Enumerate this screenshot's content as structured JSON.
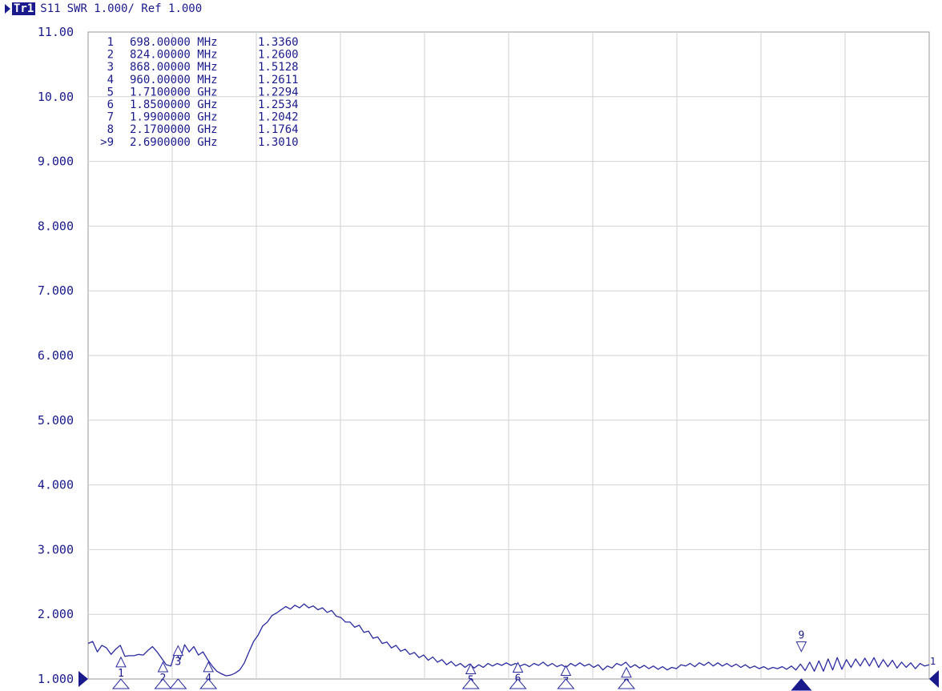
{
  "header": {
    "trace_label": "Tr1",
    "measurement": "S11",
    "format": "SWR 1.000/ Ref 1.000"
  },
  "colors": {
    "trace": "#2a2aa0",
    "grid": "#d2d2d2",
    "text": "#1a1a8c",
    "marker_fill": "#1a1a8c"
  },
  "chart_data": {
    "type": "line",
    "ylim": [
      1.0,
      11.0
    ],
    "y_ticks": [
      "1.000",
      "2.000",
      "3.000",
      "4.000",
      "5.000",
      "6.000",
      "7.000",
      "8.000",
      "9.000",
      "10.00",
      "11.00"
    ],
    "x_divisions": 10,
    "grid": true,
    "series": [
      {
        "values": [
          1.55,
          1.58,
          1.42,
          1.52,
          1.48,
          1.38,
          1.46,
          1.52,
          1.35,
          1.36,
          1.36,
          1.38,
          1.37,
          1.44,
          1.5,
          1.42,
          1.32,
          1.22,
          1.2,
          1.42,
          1.3,
          1.53,
          1.42,
          1.5,
          1.37,
          1.42,
          1.3,
          1.2,
          1.12,
          1.08,
          1.05,
          1.06,
          1.09,
          1.14,
          1.25,
          1.42,
          1.58,
          1.68,
          1.82,
          1.88,
          1.98,
          2.02,
          2.07,
          2.12,
          2.08,
          2.14,
          2.1,
          2.16,
          2.1,
          2.13,
          2.07,
          2.1,
          2.03,
          2.06,
          1.97,
          1.95,
          1.88,
          1.88,
          1.8,
          1.83,
          1.72,
          1.74,
          1.63,
          1.65,
          1.55,
          1.57,
          1.48,
          1.52,
          1.43,
          1.46,
          1.38,
          1.41,
          1.33,
          1.37,
          1.29,
          1.34,
          1.26,
          1.3,
          1.22,
          1.27,
          1.2,
          1.24,
          1.18,
          1.23,
          1.17,
          1.22,
          1.18,
          1.24,
          1.2,
          1.24,
          1.21,
          1.25,
          1.21,
          1.24,
          1.2,
          1.23,
          1.19,
          1.24,
          1.21,
          1.26,
          1.2,
          1.24,
          1.19,
          1.22,
          1.18,
          1.24,
          1.2,
          1.25,
          1.2,
          1.23,
          1.18,
          1.22,
          1.14,
          1.2,
          1.17,
          1.24,
          1.21,
          1.26,
          1.18,
          1.22,
          1.17,
          1.21,
          1.16,
          1.2,
          1.15,
          1.19,
          1.14,
          1.18,
          1.16,
          1.22,
          1.2,
          1.24,
          1.19,
          1.25,
          1.21,
          1.26,
          1.2,
          1.25,
          1.2,
          1.24,
          1.19,
          1.23,
          1.18,
          1.22,
          1.17,
          1.2,
          1.16,
          1.19,
          1.15,
          1.18,
          1.16,
          1.19,
          1.15,
          1.2,
          1.14,
          1.23,
          1.13,
          1.26,
          1.12,
          1.28,
          1.12,
          1.31,
          1.14,
          1.33,
          1.15,
          1.3,
          1.18,
          1.31,
          1.2,
          1.32,
          1.2,
          1.33,
          1.18,
          1.3,
          1.19,
          1.29,
          1.17,
          1.26,
          1.18,
          1.25,
          1.16,
          1.24,
          1.2,
          1.22
        ]
      }
    ],
    "markers": [
      {
        "num": "1",
        "label": "1",
        "freq": "698.00000 MHz",
        "value": "1.3360",
        "pos": 0.039,
        "swr": 1.336,
        "arrow": "up"
      },
      {
        "num": "2",
        "label": "2",
        "freq": "824.00000 MHz",
        "value": "1.2600",
        "pos": 0.089,
        "swr": 1.26,
        "arrow": "up"
      },
      {
        "num": "3",
        "label": "3",
        "freq": "868.00000 MHz",
        "value": "1.5128",
        "pos": 0.107,
        "swr": 1.5128,
        "arrow": "up"
      },
      {
        "num": "4",
        "label": "4",
        "freq": "960.00000 MHz",
        "value": "1.2611",
        "pos": 0.143,
        "swr": 1.2611,
        "arrow": "up"
      },
      {
        "num": "5",
        "label": "5",
        "freq": "1.7100000 GHz",
        "value": "1.2294",
        "pos": 0.455,
        "swr": 1.2294,
        "arrow": "up"
      },
      {
        "num": "6",
        "label": "6",
        "freq": "1.8500000 GHz",
        "value": "1.2534",
        "pos": 0.511,
        "swr": 1.2534,
        "arrow": "up"
      },
      {
        "num": "7",
        "label": "7",
        "freq": "1.9900000 GHz",
        "value": "1.2042",
        "pos": 0.568,
        "swr": 1.2042,
        "arrow": "up"
      },
      {
        "num": "8",
        "label": "8",
        "freq": "2.1700000 GHz",
        "value": "1.1764",
        "pos": 0.64,
        "swr": 1.1764,
        "arrow": "up"
      },
      {
        "num": ">9",
        "label": "9",
        "freq": "2.6900000 GHz",
        "value": "1.3010",
        "pos": 0.848,
        "swr": 1.301,
        "arrow": "down"
      }
    ],
    "right_ref_label": "1"
  }
}
